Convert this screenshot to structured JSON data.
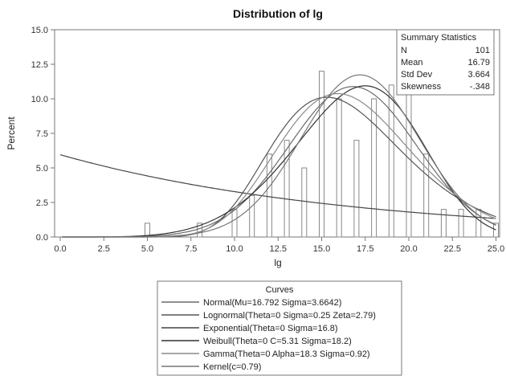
{
  "chart_data": {
    "type": "bar",
    "title": "Distribution of lg",
    "xlabel": "lg",
    "ylabel": "Percent",
    "xlim": [
      0,
      25
    ],
    "ylim": [
      0,
      15
    ],
    "x_ticks": [
      "0.0",
      "2.5",
      "5.0",
      "7.5",
      "10.0",
      "12.5",
      "15.0",
      "17.5",
      "20.0",
      "22.5",
      "25.0"
    ],
    "y_ticks": [
      "0.0",
      "2.5",
      "5.0",
      "7.5",
      "10.0",
      "12.5",
      "15.0"
    ],
    "histogram": {
      "x": [
        5,
        8,
        10,
        11,
        12,
        13,
        14,
        15,
        16,
        17,
        18,
        19,
        20,
        21,
        22,
        23,
        24,
        25
      ],
      "values": [
        1,
        1,
        2,
        3,
        6,
        7,
        5,
        12,
        10,
        7,
        10,
        11,
        11,
        6,
        2,
        2,
        2,
        1
      ]
    },
    "summary_statistics": {
      "title": "Summary Statistics",
      "rows": [
        {
          "label": "N",
          "value": "101"
        },
        {
          "label": "Mean",
          "value": "16.79"
        },
        {
          "label": "Std Dev",
          "value": "3.664"
        },
        {
          "label": "Skewness",
          "value": "-.348"
        }
      ]
    },
    "legend": {
      "title": "Curves",
      "position": "bottom",
      "entries": [
        "Normal(Mu=16.792 Sigma=3.6642)",
        "Lognormal(Theta=0 Sigma=0.25 Zeta=2.79)",
        "Exponential(Theta=0 Sigma=16.8)",
        "Weibull(Theta=0 C=5.31 Sigma=18.2)",
        "Gamma(Theta=0 Alpha=18.3 Sigma=0.92)",
        "Kernel(c=0.79)"
      ]
    },
    "curves": [
      {
        "name": "Normal",
        "kind": "normal",
        "mu": 16.792,
        "sigma": 3.6642,
        "color": "#6a6a6a"
      },
      {
        "name": "Lognormal",
        "kind": "lognormal",
        "sigma": 0.25,
        "zeta": 2.79,
        "color": "#555555"
      },
      {
        "name": "Exponential",
        "kind": "exponential",
        "sigma": 16.8,
        "color": "#444444"
      },
      {
        "name": "Weibull",
        "kind": "weibull",
        "c": 5.31,
        "sigma": 18.2,
        "color": "#333333"
      },
      {
        "name": "Gamma",
        "kind": "gamma",
        "alpha": 18.3,
        "sigma": 0.92,
        "color": "#8a8a8a"
      },
      {
        "name": "Kernel",
        "kind": "kernel",
        "c": 0.79,
        "color": "#777777"
      }
    ],
    "grid": false,
    "bar_color": "#ffffff",
    "bar_stroke": "#888888"
  }
}
